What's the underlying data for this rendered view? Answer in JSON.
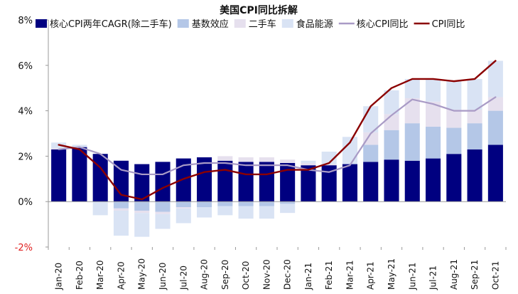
{
  "chart_data": {
    "type": "bar",
    "title": "美国CPI同比拆解",
    "categories": [
      "Jan-20",
      "Feb-20",
      "Mar-20",
      "Apr-20",
      "May-20",
      "Jun-20",
      "Jul-20",
      "Aug-20",
      "Sep-20",
      "Oct-20",
      "Nov-20",
      "Dec-20",
      "Jan-21",
      "Feb-21",
      "Mar-21",
      "Apr-21",
      "May-21",
      "Jun-21",
      "Jul-21",
      "Aug-21",
      "Sep-21",
      "Oct-21"
    ],
    "ylim": [
      -2,
      8
    ],
    "yticks": [
      -2,
      0,
      2,
      4,
      6,
      8
    ],
    "ytick_labels": [
      "-2%",
      "0%",
      "2%",
      "4%",
      "6%",
      "8%"
    ],
    "negative_tick_color": "#e02020",
    "stacked_series": [
      {
        "name": "核心CPI两年CAGR(除二手车)",
        "color": "#000080",
        "values": [
          2.3,
          2.4,
          2.1,
          1.8,
          1.65,
          1.75,
          1.9,
          1.95,
          1.8,
          1.75,
          1.75,
          1.7,
          1.6,
          1.6,
          1.65,
          1.75,
          1.85,
          1.8,
          1.9,
          2.1,
          2.3,
          2.5
        ]
      },
      {
        "name": "基数效应",
        "color": "#b4c7e7",
        "values": [
          0.0,
          0.0,
          0.0,
          -0.3,
          -0.4,
          -0.45,
          -0.25,
          -0.25,
          -0.2,
          -0.2,
          -0.2,
          -0.1,
          0.0,
          0.0,
          0.0,
          0.75,
          1.3,
          1.65,
          1.4,
          1.15,
          1.15,
          1.5
        ]
      },
      {
        "name": "二手车",
        "color": "#e6e0ee",
        "values": [
          0.05,
          0.0,
          0.0,
          -0.1,
          -0.1,
          -0.1,
          -0.05,
          0.0,
          0.2,
          0.2,
          0.2,
          0.15,
          0.1,
          0.05,
          0.0,
          0.55,
          0.7,
          1.1,
          1.1,
          0.8,
          0.6,
          0.6
        ]
      },
      {
        "name": "食品能源",
        "color": "#d9e3f4",
        "values": [
          0.25,
          0.1,
          -0.6,
          -1.1,
          -1.05,
          -0.65,
          -0.65,
          -0.45,
          -0.4,
          -0.55,
          -0.55,
          -0.4,
          0.1,
          0.55,
          1.2,
          1.15,
          1.05,
          0.85,
          1.0,
          1.25,
          1.35,
          1.6
        ]
      }
    ],
    "line_series": [
      {
        "name": "核心CPI同比",
        "color": "#a99bc6",
        "values": [
          2.3,
          2.4,
          2.1,
          1.4,
          1.2,
          1.2,
          1.6,
          1.7,
          1.7,
          1.6,
          1.6,
          1.6,
          1.4,
          1.3,
          1.6,
          3.0,
          3.8,
          4.5,
          4.3,
          4.0,
          4.0,
          4.6
        ]
      },
      {
        "name": "CPI同比",
        "color": "#8b0000",
        "values": [
          2.5,
          2.3,
          1.5,
          0.3,
          0.1,
          0.6,
          1.0,
          1.3,
          1.4,
          1.2,
          1.2,
          1.4,
          1.4,
          1.7,
          2.6,
          4.2,
          5.0,
          5.4,
          5.4,
          5.3,
          5.4,
          6.2
        ]
      }
    ],
    "legend_position": "top"
  }
}
